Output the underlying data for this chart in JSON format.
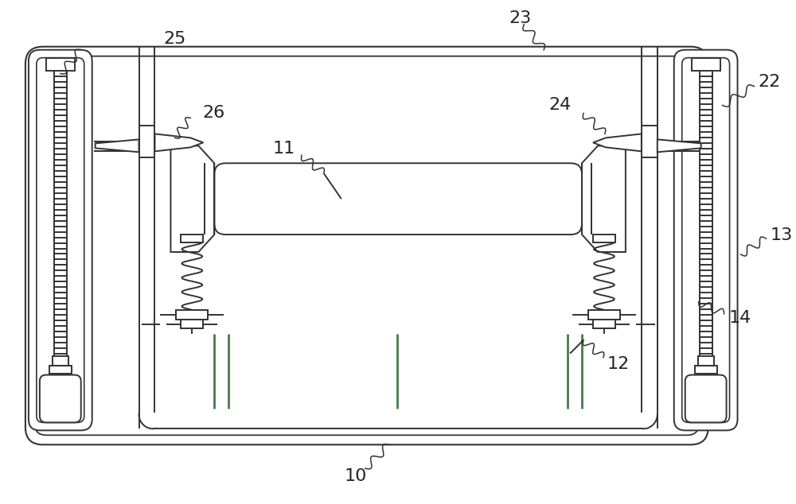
{
  "bg": "#ffffff",
  "lc": "#333333",
  "lw": 1.4,
  "lw_thin": 1.0,
  "green": "#4a7a4a",
  "label_fs": 16,
  "label_color": "#222222",
  "fig_w": 10.0,
  "fig_h": 6.34,
  "dpi": 100
}
